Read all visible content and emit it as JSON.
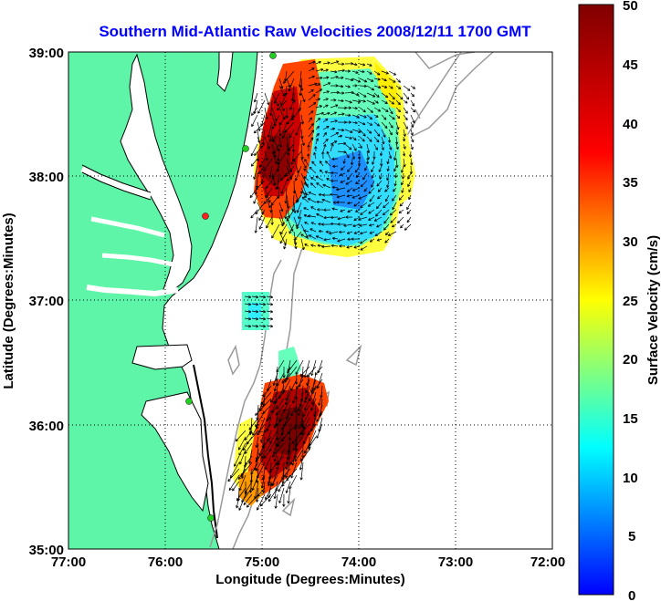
{
  "title": "Southern Mid-Atlantic Raw Velocities 2008/12/11 1700 GMT",
  "xlabel": "Longitude (Degrees:Minutes)",
  "ylabel": "Latitude (Degrees:Minutes)",
  "x_ticks": [
    "77:00",
    "76:00",
    "75:00",
    "74:00",
    "73:00",
    "72:00"
  ],
  "y_ticks": [
    "39:00",
    "38:00",
    "37:00",
    "36:00",
    "35:00"
  ],
  "colorbar": {
    "label": "Surface Velocity (cm/s)",
    "ticks": [
      "50",
      "45",
      "40",
      "35",
      "30",
      "25",
      "20",
      "15",
      "10",
      "5",
      "0"
    ]
  },
  "colors": {
    "title": "#0000ff",
    "land": "#5ef5a8",
    "coastline": "#000000",
    "bathymetry": "#9a9a9a",
    "station": "#22cc22",
    "station_alt": "#ff2222",
    "arrow": "#000000"
  }
}
